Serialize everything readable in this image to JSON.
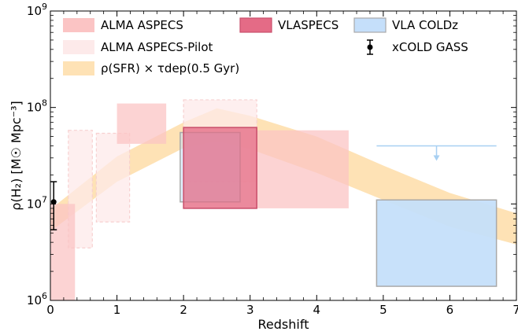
{
  "chart_data": {
    "type": "area",
    "title": "",
    "xlabel": "Redshift",
    "ylabel": "ρ(H₂) [M☉ Mpc⁻³]",
    "xlim": [
      0,
      7
    ],
    "ylim": [
      1000000,
      1000000000
    ],
    "yscale": "log",
    "xticks": [
      0,
      1,
      2,
      3,
      4,
      5,
      6,
      7
    ],
    "yticks": [
      {
        "value": 1000000,
        "base": "10",
        "exp": "6"
      },
      {
        "value": 10000000,
        "base": "10",
        "exp": "7"
      },
      {
        "value": 100000000,
        "base": "10",
        "exp": "8"
      },
      {
        "value": 1000000000,
        "base": "10",
        "exp": "9"
      }
    ],
    "grid": false,
    "legend_position": "top",
    "series": [
      {
        "name": "ρ(SFR) × τdep(0.5 Gyr)",
        "kind": "band",
        "color": "#fdd89c",
        "points": [
          {
            "x": 0.0,
            "low": 5200000,
            "high": 8800000
          },
          {
            "x": 1.0,
            "low": 17000000,
            "high": 31000000
          },
          {
            "x": 2.0,
            "low": 38000000,
            "high": 70000000
          },
          {
            "x": 2.5,
            "low": 45000000,
            "high": 98000000
          },
          {
            "x": 3.0,
            "low": 37000000,
            "high": 82000000
          },
          {
            "x": 4.0,
            "low": 21000000,
            "high": 50000000
          },
          {
            "x": 5.0,
            "low": 11000000,
            "high": 25000000
          },
          {
            "x": 6.0,
            "low": 5800000,
            "high": 13000000
          },
          {
            "x": 7.0,
            "low": 3800000,
            "high": 8000000
          }
        ]
      },
      {
        "name": "ALMA ASPECS-Pilot",
        "kind": "boxes",
        "color": "#fdeaea",
        "boxes": [
          {
            "x0": 0.27,
            "x1": 0.63,
            "y0": 3500000,
            "y1": 58000000
          },
          {
            "x0": 0.69,
            "x1": 1.19,
            "y0": 6500000,
            "y1": 54000000
          },
          {
            "x0": 2.0,
            "x1": 3.1,
            "y0": 17000000,
            "y1": 120000000
          }
        ]
      },
      {
        "name": "ALMA ASPECS",
        "kind": "boxes",
        "color": "#fbc4c4",
        "boxes": [
          {
            "x0": 0.0,
            "x1": 0.37,
            "y0": 1000000,
            "y1": 10000000
          },
          {
            "x0": 1.0,
            "x1": 1.74,
            "y0": 42000000,
            "y1": 110000000
          },
          {
            "x0": 2.0,
            "x1": 3.1,
            "y0": 9000000,
            "y1": 63000000
          },
          {
            "x0": 3.0,
            "x1": 4.48,
            "y0": 9000000,
            "y1": 58000000
          }
        ]
      },
      {
        "name": "VLASPECS",
        "kind": "boxes",
        "color": "#e46b86",
        "boxes": [
          {
            "x0": 2.0,
            "x1": 3.1,
            "y0": 9000000,
            "y1": 62000000
          }
        ]
      },
      {
        "name": "VLA COLDz",
        "kind": "boxes",
        "color": "#c5dffa",
        "boxes": [
          {
            "x0": 1.95,
            "x1": 2.85,
            "y0": 10500000,
            "y1": 55000000
          },
          {
            "x0": 4.9,
            "x1": 6.7,
            "y0": 1400000,
            "y1": 11000000
          }
        ],
        "upper_limit": {
          "x0": 4.9,
          "x1": 6.7,
          "y": 40000000,
          "arrow_x": 5.8
        }
      },
      {
        "name": "xCOLD GASS",
        "kind": "errorbar",
        "color": "#000000",
        "points": [
          {
            "x": 0.05,
            "y": 10500000,
            "ylow": 5400000,
            "yhigh": 17000000
          }
        ]
      }
    ]
  },
  "legend": [
    {
      "key": "aspecs",
      "label": "ALMA ASPECS"
    },
    {
      "key": "vlaspecs",
      "label": "VLASPECS"
    },
    {
      "key": "coldz",
      "label": "VLA COLDz"
    },
    {
      "key": "pilot",
      "label": "ALMA ASPECS-Pilot"
    },
    {
      "key": "xcold",
      "label": "xCOLD GASS"
    },
    {
      "key": "sfr",
      "label": "ρ(SFR) × τdep(0.5 Gyr)"
    }
  ],
  "colors": {
    "aspecs": "#fbc4c4",
    "pilot": "#fdeaea",
    "vlaspecs": "#e46b86",
    "coldz": "#c5dffa",
    "sfr": "#fdd89c",
    "xcold": "#000000"
  }
}
